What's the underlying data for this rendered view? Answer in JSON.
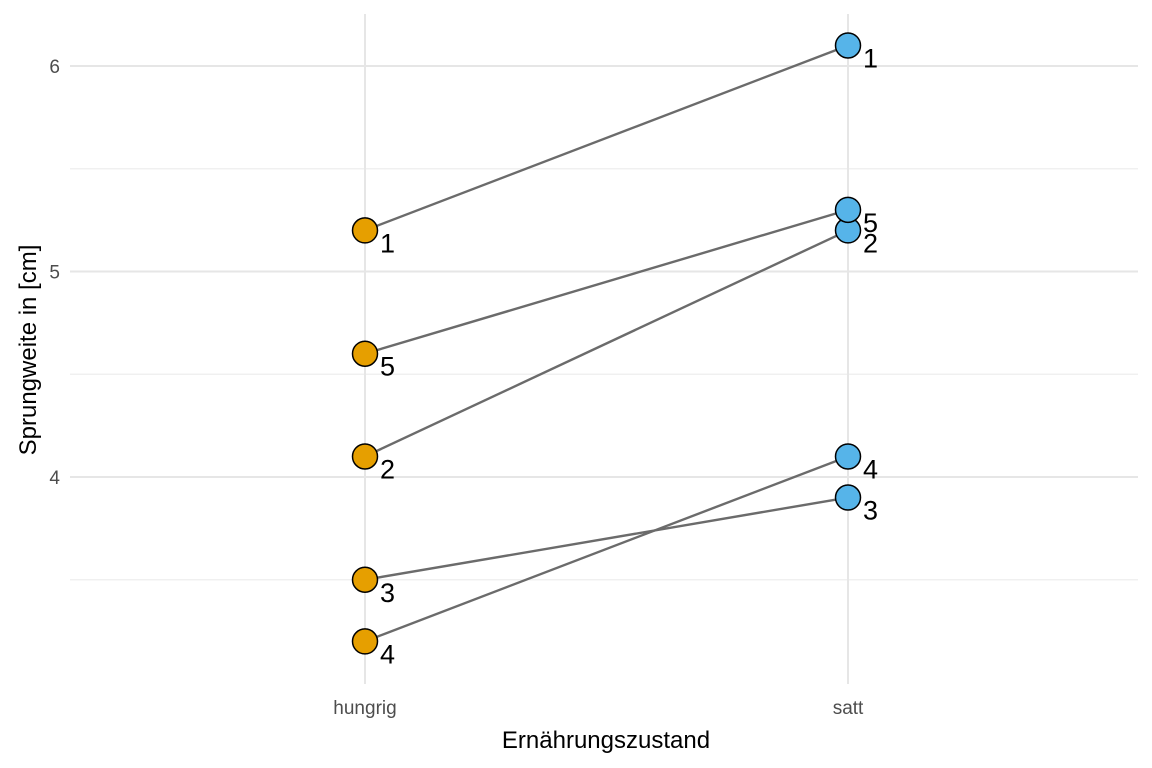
{
  "chart_data": {
    "type": "line",
    "xlabel": "Ernährungszustand",
    "ylabel": "Sprungweite in [cm]",
    "categories": [
      "hungrig",
      "satt"
    ],
    "ylim": [
      3.0,
      6.25
    ],
    "yticks": [
      4,
      5,
      6
    ],
    "yticks_labels": [
      "4",
      "5",
      "6"
    ],
    "grid": true,
    "colors": {
      "hungrig": "#E69F00",
      "satt": "#56B4E9"
    },
    "pairs": [
      {
        "id": "1",
        "hungrig": 5.2,
        "satt": 6.1
      },
      {
        "id": "2",
        "hungrig": 4.1,
        "satt": 5.2
      },
      {
        "id": "3",
        "hungrig": 3.5,
        "satt": 3.9
      },
      {
        "id": "4",
        "hungrig": 3.2,
        "satt": 4.1
      },
      {
        "id": "5",
        "hungrig": 4.6,
        "satt": 5.3
      }
    ]
  }
}
